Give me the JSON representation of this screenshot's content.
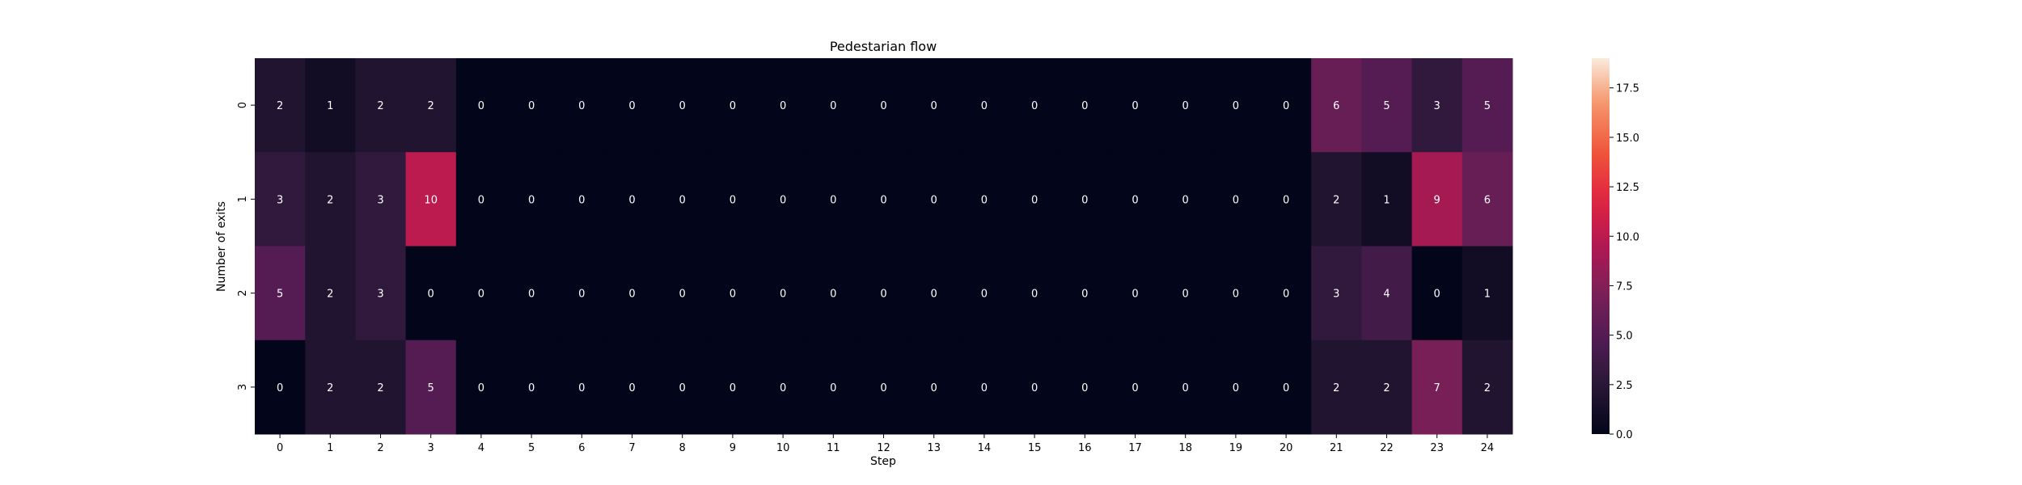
{
  "chart_data": {
    "type": "heatmap",
    "title": "Pedestarian flow",
    "xlabel": "Step",
    "ylabel": "Number of exits",
    "x": [
      "0",
      "1",
      "2",
      "3",
      "4",
      "5",
      "6",
      "7",
      "8",
      "9",
      "10",
      "11",
      "12",
      "13",
      "14",
      "15",
      "16",
      "17",
      "18",
      "19",
      "20",
      "21",
      "22",
      "23",
      "24"
    ],
    "y": [
      "0",
      "1",
      "2",
      "3"
    ],
    "values": [
      [
        2,
        1,
        2,
        2,
        0,
        0,
        0,
        0,
        0,
        0,
        0,
        0,
        0,
        0,
        0,
        0,
        0,
        0,
        0,
        0,
        0,
        6,
        5,
        3,
        5
      ],
      [
        3,
        2,
        3,
        10,
        0,
        0,
        0,
        0,
        0,
        0,
        0,
        0,
        0,
        0,
        0,
        0,
        0,
        0,
        0,
        0,
        0,
        2,
        1,
        9,
        6
      ],
      [
        5,
        2,
        3,
        0,
        0,
        0,
        0,
        0,
        0,
        0,
        0,
        0,
        0,
        0,
        0,
        0,
        0,
        0,
        0,
        0,
        0,
        3,
        4,
        0,
        1
      ],
      [
        0,
        2,
        2,
        5,
        0,
        0,
        0,
        0,
        0,
        0,
        0,
        0,
        0,
        0,
        0,
        0,
        0,
        0,
        0,
        0,
        0,
        2,
        2,
        7,
        2
      ]
    ],
    "colorbar": {
      "vmin": 0,
      "vmax": 19,
      "ticks": [
        "0.0",
        "2.5",
        "5.0",
        "7.5",
        "10.0",
        "12.5",
        "15.0",
        "17.5"
      ],
      "colormap": "rocket"
    },
    "annotations": true,
    "grid": false
  }
}
